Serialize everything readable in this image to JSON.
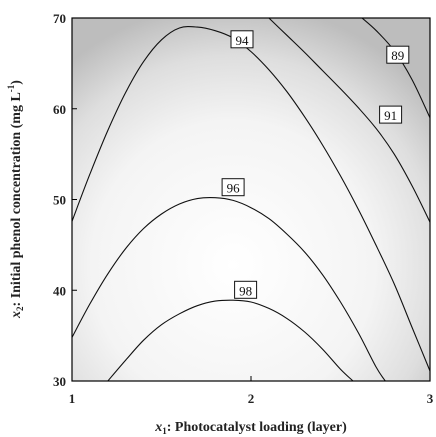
{
  "chart_data": {
    "type": "contour",
    "xlabel_var": "x",
    "xlabel_sub": "1",
    "xlabel_text": ": Photocatalyst loading (layer)",
    "ylabel_var": "x",
    "ylabel_sub": "2",
    "ylabel_text": ": Initial phenol concentration (mg L",
    "ylabel_sup": "-1",
    "ylabel_close": ")",
    "xlim": [
      1,
      3
    ],
    "ylim": [
      30,
      70
    ],
    "x_ticks": [
      1,
      2,
      3
    ],
    "y_ticks": [
      30,
      40,
      50,
      60,
      70
    ],
    "x_tick_labels": [
      "1",
      "2",
      "3"
    ],
    "y_tick_labels": [
      "30",
      "40",
      "50",
      "60",
      "70"
    ],
    "surface": {
      "colormap": "grayscale",
      "high_value_color": "#ffffff",
      "low_value_color": "#b8b8b8",
      "optimum": {
        "x": 1.9,
        "y": 42
      }
    },
    "contours": [
      {
        "level": 94,
        "label": "94",
        "label_at": {
          "x": 1.95,
          "y": 67.6
        },
        "points": [
          [
            1.0,
            47.6
          ],
          [
            1.1,
            52.8
          ],
          [
            1.2,
            57.6
          ],
          [
            1.3,
            61.8
          ],
          [
            1.4,
            65.2
          ],
          [
            1.5,
            67.6
          ],
          [
            1.6,
            68.9
          ],
          [
            1.7,
            69.0
          ],
          [
            1.8,
            68.6
          ],
          [
            1.9,
            67.8
          ],
          [
            2.0,
            66.3
          ],
          [
            2.1,
            64.3
          ],
          [
            2.2,
            61.9
          ],
          [
            2.3,
            59.1
          ],
          [
            2.4,
            56.0
          ],
          [
            2.5,
            52.6
          ],
          [
            2.6,
            48.9
          ],
          [
            2.7,
            44.9
          ],
          [
            2.8,
            40.7
          ],
          [
            2.9,
            35.9
          ],
          [
            3.0,
            31.1
          ]
        ]
      },
      {
        "level": 96,
        "label": "96",
        "label_at": {
          "x": 1.9,
          "y": 51.3
        },
        "points": [
          [
            1.0,
            34.8
          ],
          [
            1.1,
            38.5
          ],
          [
            1.2,
            41.8
          ],
          [
            1.3,
            44.6
          ],
          [
            1.4,
            46.8
          ],
          [
            1.5,
            48.4
          ],
          [
            1.6,
            49.5
          ],
          [
            1.7,
            50.1
          ],
          [
            1.8,
            50.2
          ],
          [
            1.9,
            49.9
          ],
          [
            2.0,
            49.1
          ],
          [
            2.1,
            47.9
          ],
          [
            2.2,
            46.2
          ],
          [
            2.3,
            44.2
          ],
          [
            2.4,
            41.7
          ],
          [
            2.5,
            38.7
          ],
          [
            2.6,
            35.3
          ],
          [
            2.7,
            31.5
          ],
          [
            2.75,
            30.0
          ]
        ]
      },
      {
        "level": 98,
        "label": "98",
        "label_at": {
          "x": 1.97,
          "y": 40.0
        },
        "points": [
          [
            1.2,
            30.0
          ],
          [
            1.3,
            32.3
          ],
          [
            1.4,
            34.5
          ],
          [
            1.5,
            36.2
          ],
          [
            1.6,
            37.4
          ],
          [
            1.7,
            38.3
          ],
          [
            1.8,
            38.8
          ],
          [
            1.9,
            38.9
          ],
          [
            2.0,
            38.7
          ],
          [
            2.1,
            38.0
          ],
          [
            2.2,
            36.9
          ],
          [
            2.3,
            35.4
          ],
          [
            2.4,
            33.5
          ],
          [
            2.5,
            31.3
          ],
          [
            2.57,
            30.0
          ]
        ]
      },
      {
        "level": 91,
        "label": "91",
        "label_at": {
          "x": 2.78,
          "y": 59.3
        },
        "points": [
          [
            2.1,
            70.0
          ],
          [
            2.2,
            68.1
          ],
          [
            2.3,
            66.2
          ],
          [
            2.4,
            64.2
          ],
          [
            2.5,
            62.2
          ],
          [
            2.6,
            60.1
          ],
          [
            2.7,
            57.8
          ],
          [
            2.8,
            55.0
          ],
          [
            2.9,
            51.5
          ],
          [
            3.0,
            47.5
          ]
        ]
      },
      {
        "level": 89,
        "label": "89",
        "label_at": {
          "x": 2.82,
          "y": 65.9
        },
        "points": [
          [
            2.62,
            70.0
          ],
          [
            2.7,
            68.6
          ],
          [
            2.8,
            66.4
          ],
          [
            2.9,
            63.2
          ],
          [
            3.0,
            59.0
          ]
        ]
      }
    ]
  }
}
